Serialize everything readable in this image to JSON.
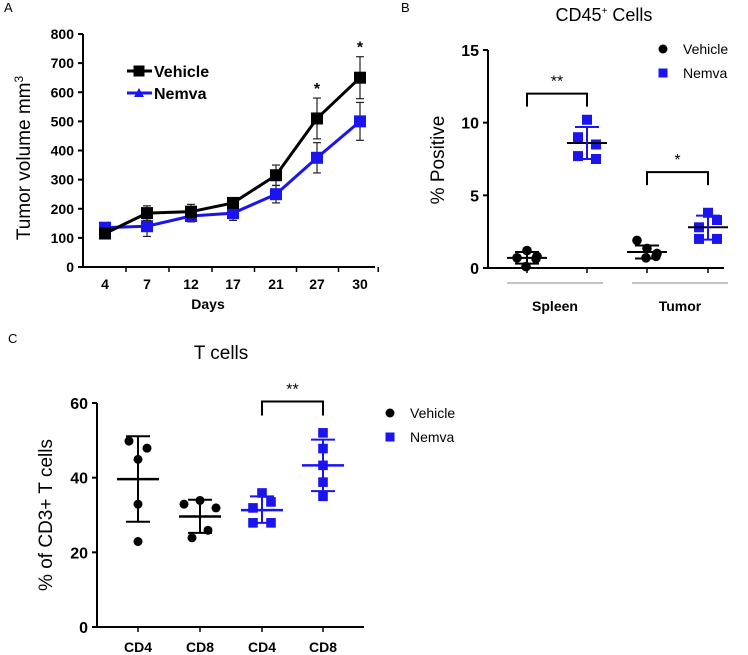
{
  "colors": {
    "vehicle": "#000000",
    "nemva": "#1a14f0"
  },
  "chart_data": [
    {
      "panel_label": "A",
      "type": "line",
      "xlabel": "Days",
      "ylabel": "Tumor volume mm",
      "ylabel_superscript": "3",
      "categories": [
        "4",
        "7",
        "12",
        "17",
        "21",
        "27",
        "30"
      ],
      "ylim": [
        0,
        800
      ],
      "yticks": [
        0,
        100,
        200,
        300,
        400,
        500,
        600,
        700,
        800
      ],
      "legend": "top-left",
      "series": [
        {
          "name": "Vehicle",
          "marker": "square",
          "values": [
            115,
            185,
            190,
            220,
            315,
            510,
            650
          ],
          "errors": [
            10,
            25,
            25,
            15,
            35,
            70,
            72
          ]
        },
        {
          "name": "Nemva",
          "marker": "triangle",
          "values": [
            135,
            140,
            175,
            185,
            250,
            375,
            500
          ],
          "errors": [
            15,
            35,
            20,
            25,
            30,
            52,
            65
          ]
        }
      ],
      "annotations": [
        {
          "category": "27",
          "text": "*"
        },
        {
          "category": "30",
          "text": "*"
        }
      ]
    },
    {
      "panel_label": "B",
      "type": "scatter",
      "title": "CD45",
      "title_superscript": "+",
      "title_suffix": " Cells",
      "ylabel": "% Positive",
      "ylim": [
        0,
        15
      ],
      "yticks": [
        0,
        5,
        10,
        15
      ],
      "groups": [
        "Spleen",
        "Tumor"
      ],
      "legend": "top-right",
      "series": [
        {
          "name": "Vehicle",
          "marker": "circle",
          "columns": [
            {
              "group": "Spleen",
              "points": [
                0.7,
                1.2,
                0.1,
                0.65,
                0.8
              ],
              "mean": 0.7,
              "sd_low": 0.3,
              "sd_high": 1.1
            },
            {
              "group": "Tumor",
              "points": [
                1.9,
                1.35,
                0.7,
                0.8,
                1.0
              ],
              "mean": 1.1,
              "sd_low": 0.65,
              "sd_high": 1.55
            }
          ]
        },
        {
          "name": "Nemva",
          "marker": "square",
          "columns": [
            {
              "group": "Spleen",
              "points": [
                10.2,
                8.5,
                9.0,
                7.5,
                7.7
              ],
              "mean": 8.6,
              "sd_low": 7.5,
              "sd_high": 9.7
            },
            {
              "group": "Tumor",
              "points": [
                3.8,
                3.3,
                2.8,
                2.0,
                2.0
              ],
              "mean": 2.8,
              "sd_low": 1.95,
              "sd_high": 3.6
            }
          ]
        }
      ],
      "annotations": [
        {
          "group": "Spleen",
          "text": "**",
          "y": 12
        },
        {
          "group": "Tumor",
          "text": "*",
          "y": 6.6
        }
      ]
    },
    {
      "panel_label": "C",
      "type": "scatter",
      "title": "T cells",
      "ylabel": "% of CD3+ T cells",
      "categories": [
        "CD4",
        "CD8",
        "CD4",
        "CD8"
      ],
      "ylim": [
        0,
        60
      ],
      "yticks": [
        0,
        20,
        40,
        60
      ],
      "legend": "right",
      "series": [
        {
          "name": "Vehicle",
          "marker": "circle",
          "columns": [
            {
              "category": "CD4",
              "points": [
                49.8,
                47.9,
                44.9,
                32.9,
                22.9
              ],
              "mean": 39.6,
              "sd_low": 28.2,
              "sd_high": 51.1
            },
            {
              "category": "CD8",
              "points": [
                32.9,
                33.9,
                31.9,
                25.9,
                23.9
              ],
              "mean": 29.6,
              "sd_low": 25.2,
              "sd_high": 34.1
            }
          ]
        },
        {
          "name": "Nemva",
          "marker": "square",
          "columns": [
            {
              "category": "CD4",
              "points": [
                35.9,
                33.5,
                31.9,
                27.9,
                27.9
              ],
              "mean": 31.3,
              "sd_low": 27.9,
              "sd_high": 35.0
            },
            {
              "category": "CD8",
              "points": [
                52.0,
                47.8,
                43.3,
                38.8,
                35.0
              ],
              "mean": 43.3,
              "sd_low": 36.4,
              "sd_high": 50.2
            }
          ]
        }
      ],
      "annotations": [
        {
          "text": "**",
          "y": 60.4
        }
      ]
    }
  ]
}
